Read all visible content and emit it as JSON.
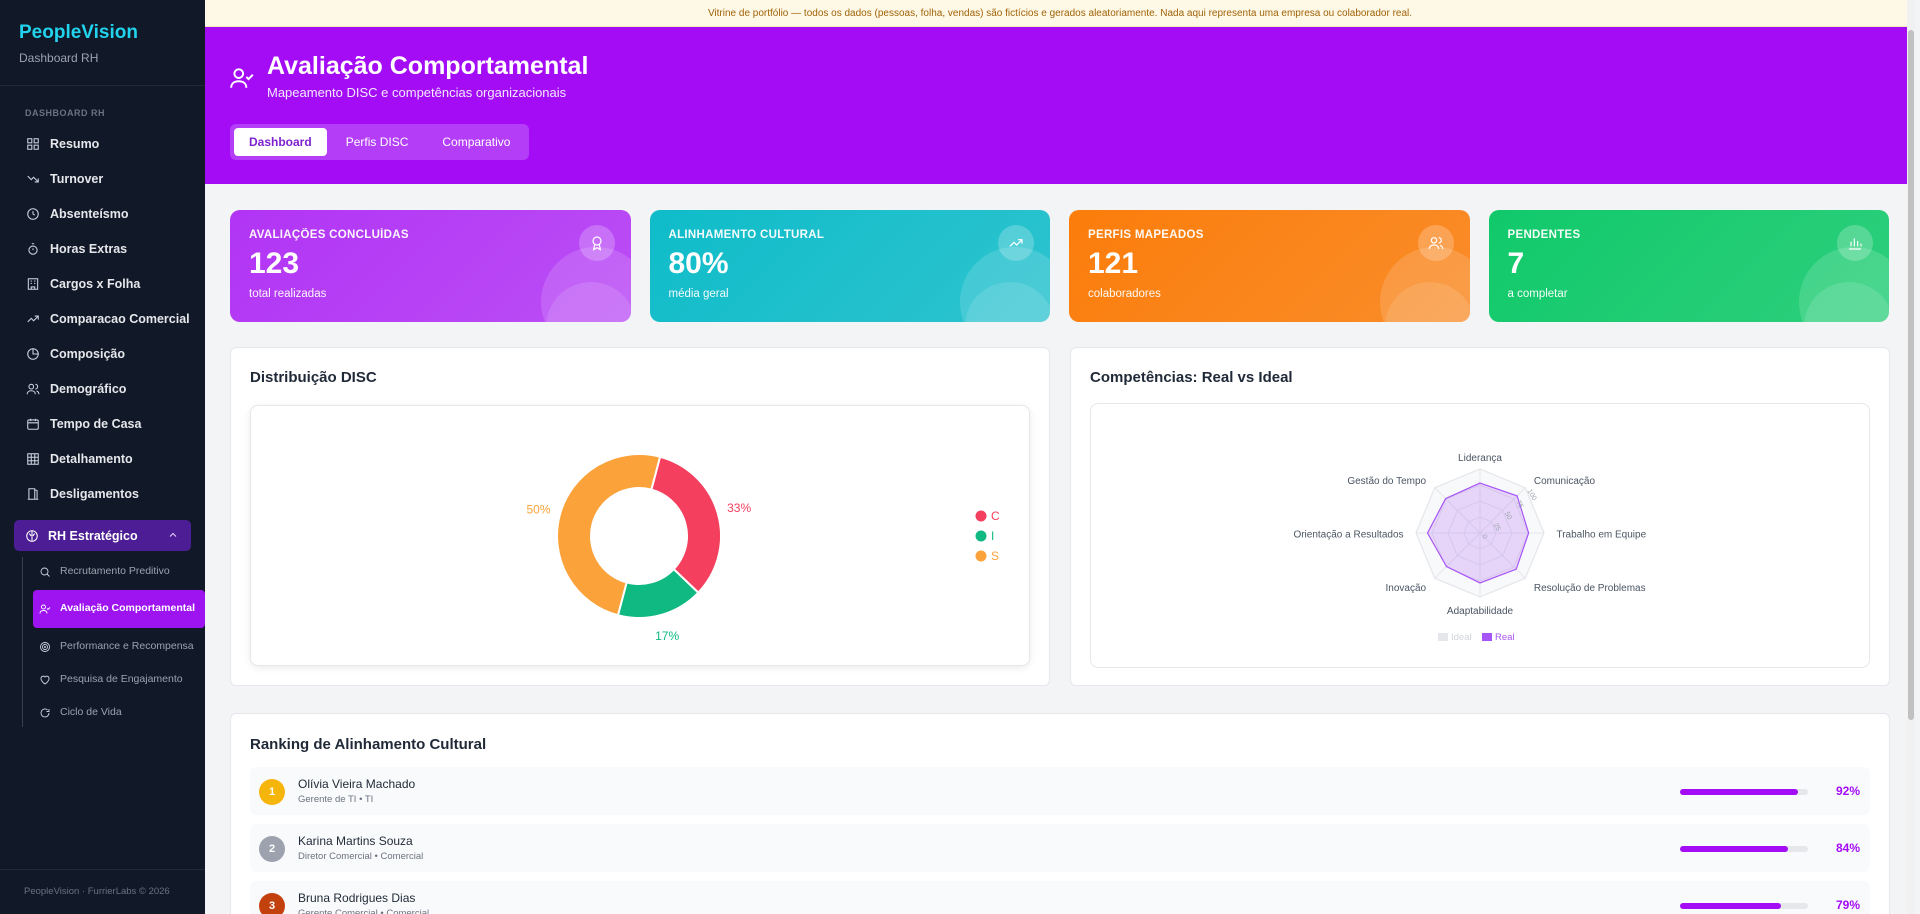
{
  "sidebar": {
    "brand": "PeopleVision",
    "brand_sub": "Dashboard RH",
    "section": "DASHBOARD RH",
    "items": [
      {
        "label": "Resumo",
        "icon": "grid-icon"
      },
      {
        "label": "Turnover",
        "icon": "trend-down-icon"
      },
      {
        "label": "Absenteísmo",
        "icon": "clock-icon"
      },
      {
        "label": "Horas Extras",
        "icon": "timer-icon"
      },
      {
        "label": "Cargos x Folha",
        "icon": "building-icon"
      },
      {
        "label": "Comparacao Comercial",
        "icon": "trend-up-icon"
      },
      {
        "label": "Composição",
        "icon": "pie-icon"
      },
      {
        "label": "Demográfico",
        "icon": "users-icon"
      },
      {
        "label": "Tempo de Casa",
        "icon": "calendar-icon"
      },
      {
        "label": "Detalhamento",
        "icon": "table-icon"
      },
      {
        "label": "Desligamentos",
        "icon": "door-icon"
      }
    ],
    "group": {
      "label": "RH Estratégico",
      "icon": "brain-icon"
    },
    "subitems": [
      {
        "label": "Recrutamento Preditivo",
        "icon": "search-icon"
      },
      {
        "label": "Avaliação Comportamental",
        "icon": "user-check-icon",
        "active": true
      },
      {
        "label": "Performance e Recompensa",
        "icon": "target-icon"
      },
      {
        "label": "Pesquisa de Engajamento",
        "icon": "heart-icon"
      },
      {
        "label": "Ciclo de Vida",
        "icon": "refresh-icon"
      }
    ],
    "footer": "PeopleVision · FurrierLabs © 2026"
  },
  "notice": "Vitrine de portfólio — todos os dados (pessoas, folha, vendas) são fictícios e gerados aleatoriamente. Nada aqui representa uma empresa ou colaborador real.",
  "hero": {
    "title": "Avaliação Comportamental",
    "subtitle": "Mapeamento DISC e competências organizacionais",
    "tabs": [
      "Dashboard",
      "Perfis DISC",
      "Comparativo"
    ]
  },
  "kpis": [
    {
      "label": "AVALIAÇÕES CONCLUÍDAS",
      "value": "123",
      "sub": "total realizadas",
      "color": "#b234f5",
      "icon": "award-icon"
    },
    {
      "label": "ALINHAMENTO CULTURAL",
      "value": "80%",
      "sub": "média geral",
      "color": "#0fbcc9",
      "icon": "trend-up-icon"
    },
    {
      "label": "PERFIS MAPEADOS",
      "value": "121",
      "sub": "colaboradores",
      "color": "#fb7d0b",
      "icon": "users-icon"
    },
    {
      "label": "PENDENTES",
      "value": "7",
      "sub": "a completar",
      "color": "#10c96a",
      "icon": "bar-chart-icon"
    }
  ],
  "disc": {
    "title": "Distribuição DISC",
    "chart_data": {
      "type": "pie",
      "categories": [
        "C",
        "I",
        "S"
      ],
      "values": [
        33,
        17,
        50
      ],
      "colors": [
        "#f43f5e",
        "#10b981",
        "#fba23a"
      ],
      "labels": [
        "33%",
        "17%",
        "50%"
      ],
      "legend": "right"
    }
  },
  "radar": {
    "title": "Competências: Real vs Ideal",
    "chart_data": {
      "type": "radar",
      "axes": [
        "Liderança",
        "Comunicação",
        "Trabalho em Equipe",
        "Resolução de Problemas",
        "Adaptabilidade",
        "Inovação",
        "Orientação a Resultados",
        "Gestão do Tempo"
      ],
      "ticks": [
        "0",
        "25",
        "50",
        "75",
        "100"
      ],
      "series": [
        {
          "name": "Ideal",
          "values": [
            100,
            100,
            100,
            100,
            100,
            100,
            100,
            100
          ],
          "color": "#e5e7eb"
        },
        {
          "name": "Real",
          "values": [
            78,
            82,
            76,
            80,
            78,
            74,
            82,
            76
          ],
          "color": "#a855f7"
        }
      ],
      "legend": "bottom"
    }
  },
  "ranking": {
    "title": "Ranking de Alinhamento Cultural",
    "rows": [
      {
        "rank": "1",
        "name": "Olívia Vieira Machado",
        "role": "Gerente de TI • TI",
        "pct": "92%",
        "value": 0.92,
        "badge": "#f5b50b"
      },
      {
        "rank": "2",
        "name": "Karina Martins Souza",
        "role": "Diretor Comercial • Comercial",
        "pct": "84%",
        "value": 0.84,
        "badge": "#9ca3af"
      },
      {
        "rank": "3",
        "name": "Bruna Rodrigues Dias",
        "role": "Gerente Comercial • Comercial",
        "pct": "79%",
        "value": 0.79,
        "badge": "#c2410c"
      }
    ]
  }
}
